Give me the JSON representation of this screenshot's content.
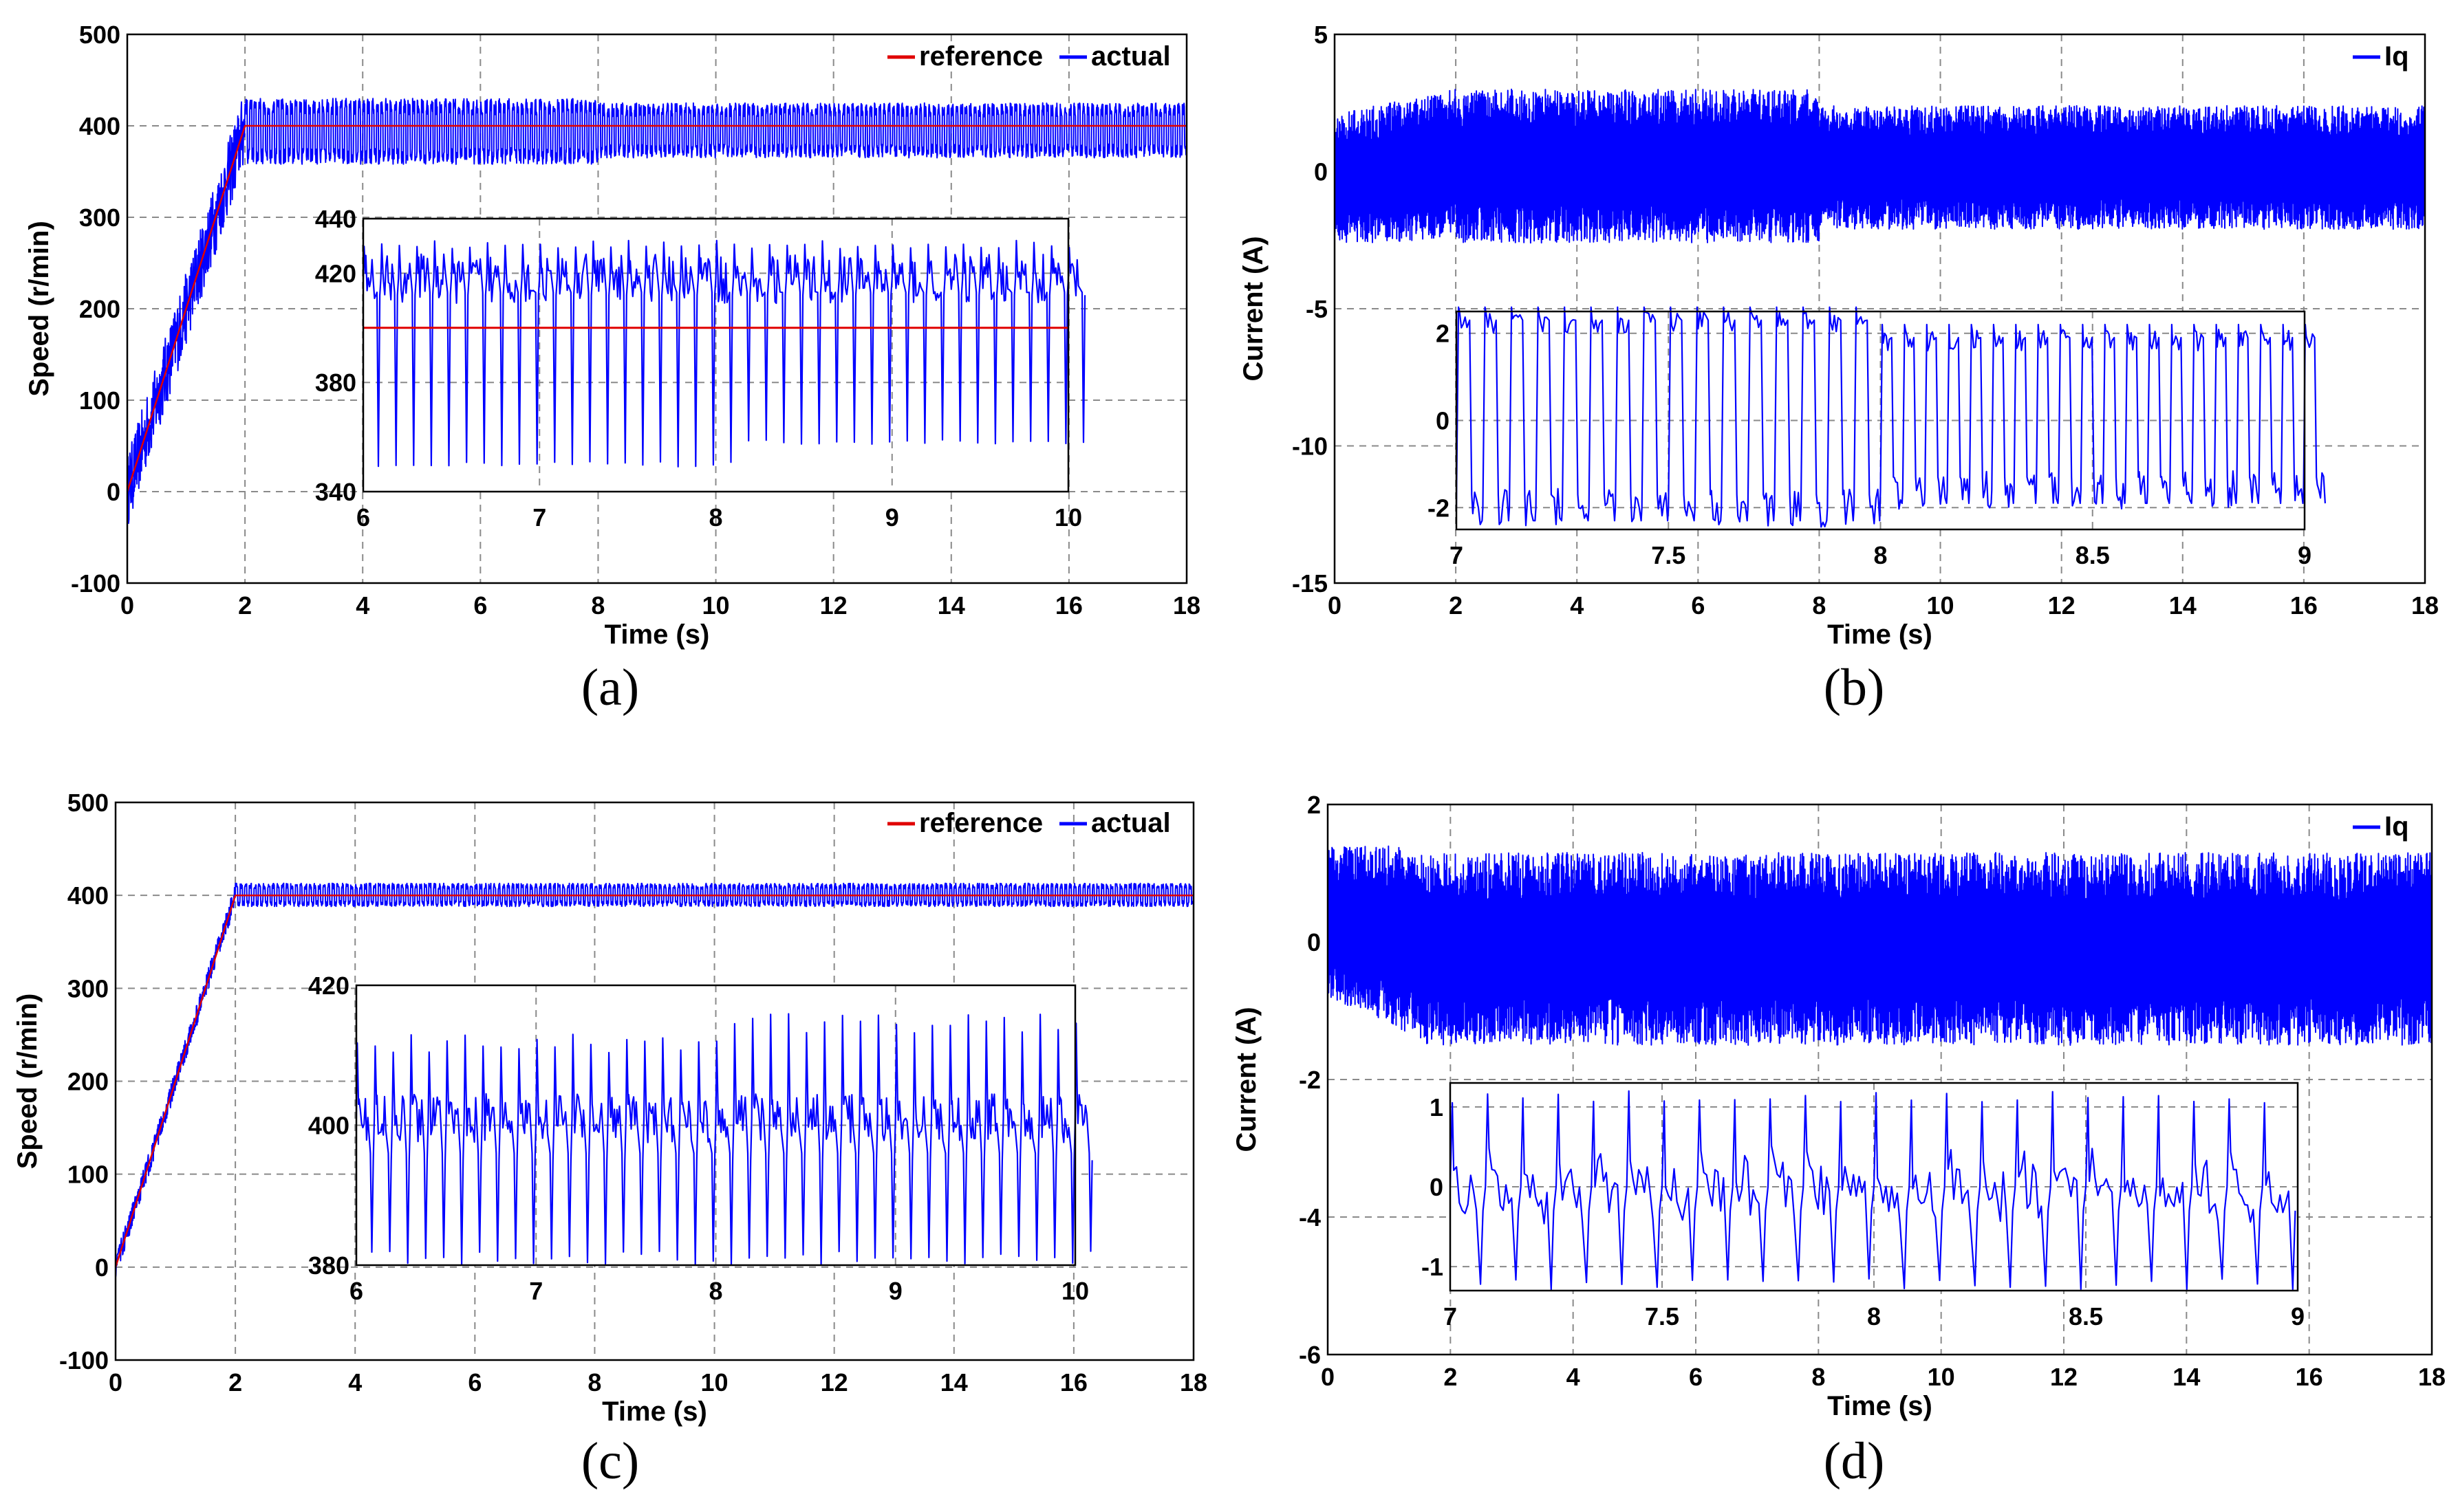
{
  "chart_data": [
    {
      "id": "a",
      "type": "line",
      "caption": "(a)",
      "xlabel": "Time (s)",
      "ylabel": "Speed (r/min)",
      "xlim": [
        0,
        18
      ],
      "ylim": [
        -100,
        500
      ],
      "xticks": [
        0,
        2,
        4,
        6,
        8,
        10,
        12,
        14,
        16,
        18
      ],
      "yticks": [
        -100,
        0,
        100,
        200,
        300,
        400,
        500
      ],
      "legend": [
        "reference",
        "actual"
      ],
      "series": [
        {
          "name": "reference",
          "color": "#e00000",
          "x": [
            0,
            2,
            18
          ],
          "y": [
            0,
            400,
            400
          ]
        },
        {
          "name": "actual",
          "color": "#0000ff",
          "ramp_end": [
            2,
            400
          ],
          "steady_mean": 395,
          "steady_high": 430,
          "steady_low": 358,
          "after8_high": 425,
          "after8_low": 365
        }
      ],
      "inset": {
        "xlim": [
          6,
          10
        ],
        "ylim": [
          340,
          440
        ],
        "xticks": [
          6,
          7,
          8,
          9,
          10
        ],
        "yticks": [
          340,
          380,
          420,
          440
        ],
        "reference": 400,
        "osc_high": 432,
        "osc_low": 349,
        "after8_low": 357
      }
    },
    {
      "id": "b",
      "type": "line",
      "caption": "(b)",
      "xlabel": "Time (s)",
      "ylabel": "Current (A)",
      "xlim": [
        0,
        18
      ],
      "ylim": [
        -15,
        5
      ],
      "xticks": [
        0,
        2,
        4,
        6,
        8,
        10,
        12,
        14,
        16,
        18
      ],
      "yticks": [
        -15,
        -10,
        -5,
        0,
        5
      ],
      "legend": [
        "Iq"
      ],
      "series": [
        {
          "name": "Iq",
          "color": "#0000ff",
          "amp_before8": 3.0,
          "amp_after8": 2.4
        }
      ],
      "inset": {
        "xlim": [
          7,
          9
        ],
        "ylim": [
          -2.5,
          2.5
        ],
        "xticks": [
          7,
          7.5,
          8,
          8.5,
          9
        ],
        "yticks": [
          -2,
          0,
          2
        ],
        "high_before8": 2.6,
        "low_before8": -2.3,
        "high_after8": 2.2,
        "low_after8": -1.9
      }
    },
    {
      "id": "c",
      "type": "line",
      "caption": "(c)",
      "xlabel": "Time (s)",
      "ylabel": "Speed (r/min)",
      "xlim": [
        0,
        18
      ],
      "ylim": [
        -100,
        500
      ],
      "xticks": [
        0,
        2,
        4,
        6,
        8,
        10,
        12,
        14,
        16,
        18
      ],
      "yticks": [
        -100,
        0,
        100,
        200,
        300,
        400,
        500
      ],
      "legend": [
        "reference",
        "actual"
      ],
      "series": [
        {
          "name": "reference",
          "color": "#e00000",
          "x": [
            0,
            2,
            18
          ],
          "y": [
            0,
            400,
            400
          ]
        },
        {
          "name": "actual",
          "color": "#0000ff",
          "ramp_end": [
            2,
            400
          ],
          "steady_high": 413,
          "steady_low": 388
        }
      ],
      "inset": {
        "xlim": [
          6,
          10
        ],
        "ylim": [
          380,
          420
        ],
        "xticks": [
          6,
          7,
          8,
          9,
          10
        ],
        "yticks": [
          380,
          400,
          420
        ],
        "osc_high": 413,
        "osc_low": 380,
        "after8_high": 416
      }
    },
    {
      "id": "d",
      "type": "line",
      "caption": "(d)",
      "xlabel": "Time (s)",
      "ylabel": "Current (A)",
      "xlim": [
        0,
        18
      ],
      "ylim": [
        -6,
        2
      ],
      "xticks": [
        0,
        2,
        4,
        6,
        8,
        10,
        12,
        14,
        16,
        18
      ],
      "yticks": [
        -6,
        -4,
        -2,
        0,
        2
      ],
      "legend": [
        "Iq"
      ],
      "series": [
        {
          "name": "Iq",
          "color": "#0000ff",
          "amp_high": 1.3,
          "amp_low": -1.5
        }
      ],
      "inset": {
        "xlim": [
          7,
          9
        ],
        "ylim": [
          -1.3,
          1.3
        ],
        "xticks": [
          7,
          7.5,
          8,
          8.5,
          9
        ],
        "yticks": [
          -1,
          0,
          1
        ],
        "high": 1.2,
        "low": -1.3
      }
    }
  ]
}
